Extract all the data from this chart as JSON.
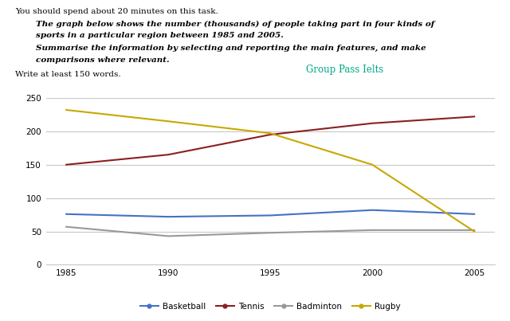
{
  "years": [
    1985,
    1990,
    1995,
    2000,
    2005
  ],
  "basketball": [
    76,
    72,
    74,
    82,
    76
  ],
  "tennis": [
    150,
    165,
    195,
    212,
    222
  ],
  "badminton": [
    57,
    43,
    48,
    52,
    52
  ],
  "rugby": [
    232,
    215,
    197,
    150,
    50
  ],
  "basketball_color": "#4472c4",
  "tennis_color": "#8b2020",
  "badminton_color": "#999999",
  "rugby_color": "#c8a800",
  "ylim": [
    0,
    250
  ],
  "yticks": [
    0,
    50,
    100,
    150,
    200,
    250
  ],
  "xticks": [
    1985,
    1990,
    1995,
    2000,
    2005
  ],
  "header_line1": "You should spend about 20 minutes on this task.",
  "header_line2": "The graph below shows the number (thousands) of people taking part in four kinds of",
  "header_line3": "sports in a particular region between 1985 and 2005.",
  "header_line4": "Summarise the information by selecting and reporting the main features, and make",
  "header_line5": "comparisons where relevant.",
  "watermark": "Group Pass Ielts",
  "footer": "Write at least 150 words.",
  "bg_color": "#ffffff",
  "grid_color": "#c8c8c8",
  "text_color": "#000000",
  "watermark_color": "#00aa88"
}
